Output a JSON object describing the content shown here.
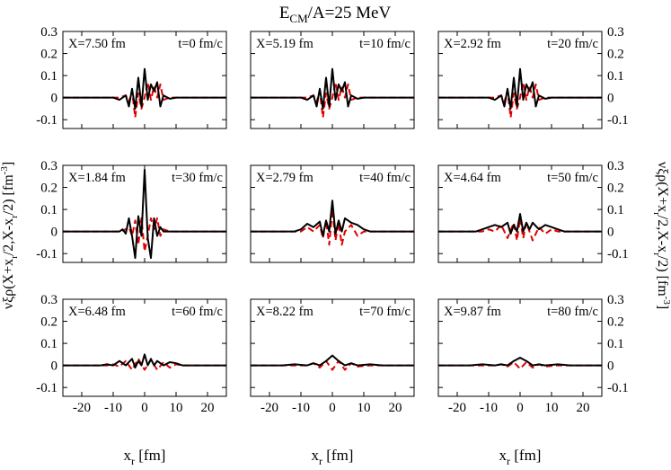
{
  "chart_data": {
    "type": "line",
    "title": "E_CM/A=25 MeV",
    "title_main": "E",
    "title_sub": "CM",
    "title_rest": "/A=25 MeV",
    "xlabel": "x_r [fm]",
    "xlabel_main": "x",
    "xlabel_sub": "r",
    "xlabel_rest": " [fm]",
    "ylabel": "νξρ(X+x_r/2,X-x_r/2) [fm^-3]",
    "ylabel_parts": [
      "νξρ(X+x",
      "r",
      "/2,X-x",
      "r",
      "/2) [fm",
      "-3",
      "]"
    ],
    "xlim": [
      -26,
      26
    ],
    "ylim": [
      -0.14,
      0.3
    ],
    "xticks": [
      -20,
      -10,
      0,
      10,
      20
    ],
    "yticks": [
      -0.1,
      0,
      0.1,
      0.2,
      0.3
    ],
    "xtick_labels": [
      "-20",
      "-10",
      "0",
      "10",
      "20"
    ],
    "ytick_labels": [
      "-0.1",
      "0",
      "0.1",
      "0.2",
      "0.3"
    ],
    "series_legend": [
      {
        "name": "solid",
        "color": "#000000",
        "style": "solid"
      },
      {
        "name": "dashed",
        "color": "#e00000",
        "style": "dashed"
      }
    ],
    "panels": [
      {
        "label_x": "X=7.50 fm",
        "label_t": "t=0 fm/c",
        "solid": {
          "x": [
            -26,
            -10,
            -8,
            -6,
            -5,
            -4,
            -3,
            -2,
            -1,
            0,
            1,
            2,
            3,
            4,
            5,
            6,
            8,
            10,
            26
          ],
          "y": [
            0,
            0,
            -0.01,
            0.01,
            -0.04,
            0.04,
            -0.05,
            0.09,
            -0.04,
            0.13,
            -0.01,
            0.06,
            0.03,
            0.07,
            -0.04,
            0.01,
            -0.005,
            0,
            0
          ]
        },
        "dashed": {
          "x": [
            -26,
            -8,
            -6,
            -5,
            -4,
            -3,
            -2,
            -1,
            0,
            1,
            2,
            3,
            4,
            5,
            6,
            8,
            26
          ],
          "y": [
            0,
            0,
            0.01,
            -0.02,
            0.03,
            -0.09,
            0.02,
            -0.05,
            0.0,
            0.07,
            -0.01,
            0.05,
            0.0,
            0.06,
            -0.01,
            0,
            0
          ]
        }
      },
      {
        "label_x": "X=5.19 fm",
        "label_t": "t=10 fm/c",
        "solid": {
          "x": [
            -26,
            -10,
            -8,
            -6,
            -5,
            -4,
            -3,
            -2,
            -1,
            0,
            1,
            2,
            3,
            4,
            5,
            6,
            8,
            10,
            26
          ],
          "y": [
            0,
            0,
            -0.01,
            0.01,
            -0.04,
            0.04,
            -0.05,
            0.09,
            -0.04,
            0.13,
            -0.01,
            0.06,
            0.03,
            0.07,
            -0.04,
            0.01,
            -0.005,
            0,
            0
          ]
        },
        "dashed": {
          "x": [
            -26,
            -8,
            -6,
            -5,
            -4,
            -3,
            -2,
            -1,
            0,
            1,
            2,
            3,
            4,
            5,
            6,
            8,
            26
          ],
          "y": [
            0,
            0,
            0.01,
            -0.02,
            0.03,
            -0.09,
            0.02,
            -0.05,
            0.0,
            0.07,
            -0.01,
            0.05,
            0.0,
            0.06,
            -0.01,
            0,
            0
          ]
        }
      },
      {
        "label_x": "X=2.92 fm",
        "label_t": "t=20 fm/c",
        "solid": {
          "x": [
            -26,
            -10,
            -8,
            -6,
            -5,
            -4,
            -3,
            -2,
            -1,
            0,
            1,
            2,
            3,
            4,
            5,
            6,
            8,
            10,
            26
          ],
          "y": [
            0,
            0,
            -0.01,
            0.01,
            -0.04,
            0.04,
            -0.05,
            0.09,
            -0.04,
            0.13,
            -0.01,
            0.06,
            0.03,
            0.07,
            -0.04,
            0.01,
            -0.005,
            0,
            0
          ]
        },
        "dashed": {
          "x": [
            -26,
            -8,
            -6,
            -5,
            -4,
            -3,
            -2,
            -1,
            0,
            1,
            2,
            3,
            4,
            5,
            6,
            8,
            26
          ],
          "y": [
            0,
            0,
            0.01,
            -0.02,
            0.03,
            -0.09,
            0.02,
            -0.05,
            0.0,
            0.07,
            -0.01,
            0.05,
            0.0,
            0.06,
            -0.01,
            0,
            0
          ]
        }
      },
      {
        "label_x": "X=1.84 fm",
        "label_t": "t=30 fm/c",
        "solid": {
          "x": [
            -26,
            -10,
            -8,
            -7,
            -6,
            -5,
            -4,
            -3,
            -2,
            -1,
            0,
            1,
            2,
            3,
            4,
            5,
            6,
            8,
            10,
            26
          ],
          "y": [
            0,
            0,
            0,
            0.01,
            -0.01,
            0.06,
            -0.02,
            -0.12,
            0.07,
            -0.02,
            0.28,
            -0.03,
            -0.12,
            0.06,
            -0.02,
            0.02,
            0,
            0,
            0,
            0
          ]
        },
        "dashed": {
          "x": [
            -26,
            -8,
            -6,
            -5,
            -4,
            -3,
            -2,
            -1,
            0,
            1,
            2,
            3,
            4,
            5,
            6,
            8,
            26
          ],
          "y": [
            0,
            0,
            0.01,
            0.02,
            -0.02,
            0.05,
            -0.06,
            0.06,
            -0.09,
            -0.02,
            0.06,
            0.01,
            0.06,
            -0.02,
            0.01,
            0,
            0
          ]
        }
      },
      {
        "label_x": "X=2.79 fm",
        "label_t": "t=40 fm/c",
        "solid": {
          "x": [
            -26,
            -12,
            -10,
            -8,
            -6,
            -4,
            -3,
            -2,
            -1,
            0,
            1,
            2,
            3,
            4,
            6,
            8,
            10,
            12,
            26
          ],
          "y": [
            0,
            0,
            0.01,
            0.035,
            0.02,
            0.045,
            -0.02,
            0.05,
            0.0,
            0.14,
            -0.01,
            0.05,
            0.0,
            0.06,
            0.04,
            0.03,
            0.01,
            0,
            0
          ]
        },
        "dashed": {
          "x": [
            -26,
            -10,
            -8,
            -6,
            -4,
            -3,
            -2,
            -1,
            0,
            1,
            2,
            3,
            4,
            6,
            8,
            10,
            26
          ],
          "y": [
            0,
            0,
            0.02,
            0.0,
            0.03,
            -0.03,
            0.05,
            -0.06,
            0.1,
            -0.04,
            0.04,
            -0.06,
            0.0,
            0.03,
            -0.02,
            0,
            0
          ]
        }
      },
      {
        "label_x": "X=4.64 fm",
        "label_t": "t=50 fm/c",
        "solid": {
          "x": [
            -26,
            -14,
            -12,
            -10,
            -8,
            -6,
            -4,
            -3,
            -2,
            -1,
            0,
            1,
            2,
            3,
            4,
            6,
            8,
            10,
            12,
            14,
            26
          ],
          "y": [
            0,
            0,
            0.01,
            0.02,
            0.03,
            0.02,
            0.04,
            -0.01,
            0.03,
            0.0,
            0.08,
            0.0,
            0.04,
            0.01,
            0.04,
            0.01,
            0.03,
            0.02,
            0.01,
            0,
            0
          ]
        },
        "dashed": {
          "x": [
            -26,
            -12,
            -10,
            -8,
            -6,
            -4,
            -2,
            -1,
            0,
            1,
            2,
            4,
            6,
            8,
            10,
            12,
            26
          ],
          "y": [
            0,
            0,
            0.01,
            0.0,
            0.03,
            -0.03,
            0.04,
            -0.04,
            0.06,
            -0.03,
            0.04,
            -0.04,
            0.02,
            -0.01,
            0.01,
            0,
            0
          ]
        }
      },
      {
        "label_x": "X=6.48 fm",
        "label_t": "t=60 fm/c",
        "solid": {
          "x": [
            -26,
            -14,
            -12,
            -10,
            -8,
            -6,
            -4,
            -3,
            -2,
            -1,
            0,
            1,
            2,
            3,
            4,
            6,
            8,
            10,
            12,
            14,
            26
          ],
          "y": [
            0,
            0,
            0.005,
            0.0,
            0.02,
            0.0,
            0.03,
            -0.01,
            0.02,
            0.0,
            0.05,
            0.0,
            0.03,
            0.0,
            0.02,
            0.0,
            0.015,
            0.01,
            0.0,
            0,
            0
          ]
        },
        "dashed": {
          "x": [
            -26,
            -12,
            -10,
            -8,
            -6,
            -4,
            -2,
            0,
            2,
            4,
            6,
            8,
            10,
            12,
            26
          ],
          "y": [
            0,
            0,
            0.005,
            -0.005,
            0.02,
            -0.02,
            0.03,
            -0.02,
            0.025,
            -0.02,
            0.015,
            -0.01,
            0.005,
            0,
            0
          ]
        }
      },
      {
        "label_x": "X=8.22 fm",
        "label_t": "t=70 fm/c",
        "solid": {
          "x": [
            -26,
            -16,
            -12,
            -8,
            -6,
            -4,
            -2,
            0,
            2,
            4,
            6,
            8,
            12,
            16,
            26
          ],
          "y": [
            0,
            0,
            0.005,
            0.0,
            0.01,
            0.0,
            0.02,
            0.045,
            0.02,
            0.0,
            0.01,
            0.0,
            0.005,
            0,
            0
          ]
        },
        "dashed": {
          "x": [
            -26,
            -12,
            -8,
            -6,
            -4,
            -2,
            0,
            2,
            4,
            6,
            8,
            12,
            26
          ],
          "y": [
            0,
            0,
            0.0,
            0.01,
            -0.01,
            0.02,
            -0.02,
            0.02,
            -0.02,
            0.01,
            -0.005,
            0,
            0
          ]
        }
      },
      {
        "label_x": "X=9.87 fm",
        "label_t": "t=80 fm/c",
        "solid": {
          "x": [
            -26,
            -16,
            -12,
            -8,
            -6,
            -4,
            -2,
            0,
            2,
            4,
            6,
            8,
            12,
            16,
            26
          ],
          "y": [
            0,
            0,
            0.005,
            0.0,
            0.005,
            0.0,
            0.02,
            0.035,
            0.02,
            0.0,
            0.005,
            0.0,
            0.005,
            0,
            0
          ]
        },
        "dashed": {
          "x": [
            -26,
            -12,
            -8,
            -6,
            -4,
            -2,
            0,
            2,
            4,
            6,
            8,
            12,
            26
          ],
          "y": [
            0,
            0,
            0.0,
            0.005,
            -0.005,
            0.015,
            -0.015,
            0.015,
            -0.01,
            0.005,
            -0.005,
            0,
            0
          ]
        }
      }
    ]
  }
}
